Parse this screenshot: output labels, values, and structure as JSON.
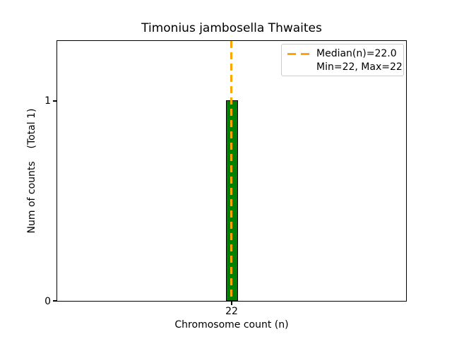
{
  "chart_data": {
    "type": "bar",
    "title": "Timonius jambosella Thwaites",
    "xlabel": "Chromosome count (n)",
    "ylabel": "Num of counts    (Total 1)",
    "categories": [
      22
    ],
    "values": [
      1
    ],
    "x_tick_labels": [
      "22"
    ],
    "y_tick_labels": [
      "0",
      "1"
    ],
    "ylim": [
      0,
      1.3
    ],
    "grid": false,
    "bar_color": "#008000",
    "bar_edge_color": "#000000",
    "median_line": {
      "value": 22.0,
      "orientation": "vertical",
      "style": "dashed",
      "color": "#FFA500"
    },
    "stats": {
      "median": 22.0,
      "min": 22,
      "max": 22
    },
    "legend": {
      "position": "upper right",
      "entries": [
        {
          "label": "Median(n)=22.0",
          "sample": "orange-dashed-line",
          "color": "#FFA500"
        },
        {
          "label": "Min=22, Max=22",
          "sample": null
        }
      ]
    }
  }
}
